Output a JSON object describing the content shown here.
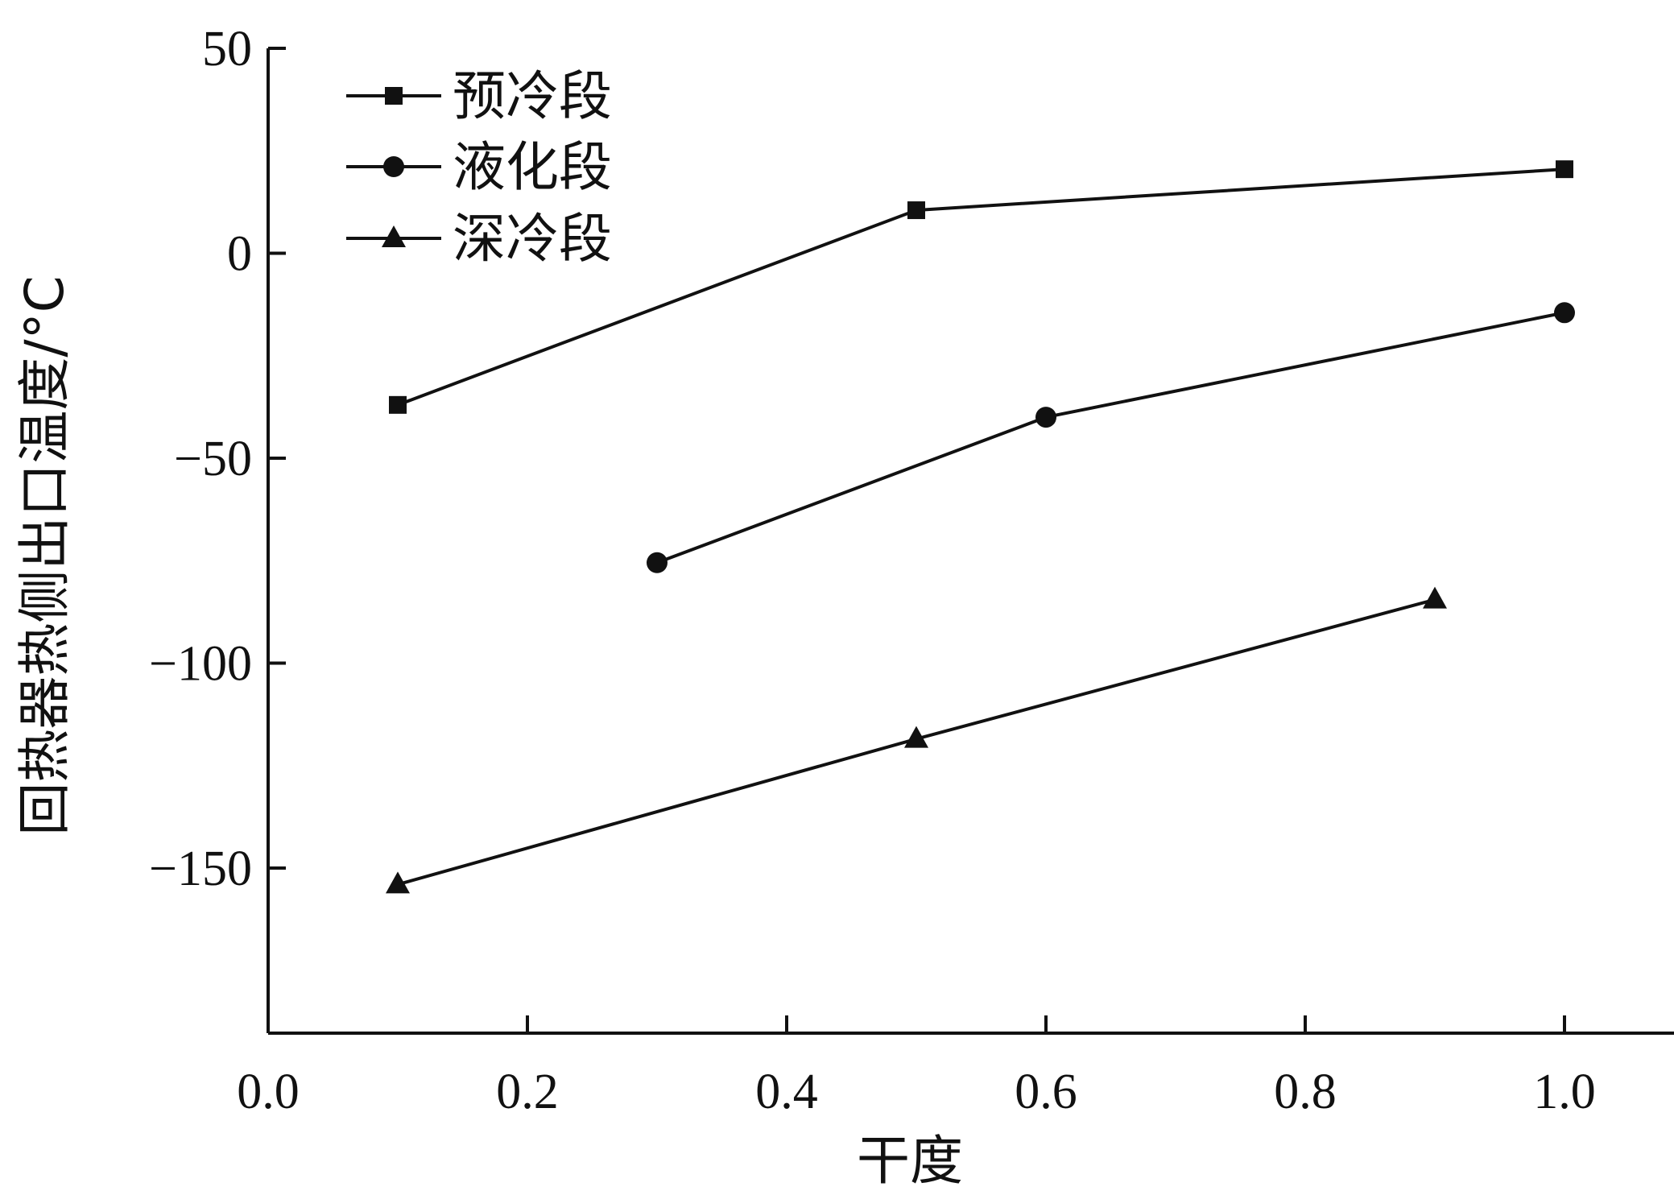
{
  "chart_data": {
    "type": "line",
    "title": "",
    "xlabel": "干度",
    "ylabel": "回热器热侧出口温度/°C",
    "xlim": [
      0.0,
      1.08
    ],
    "ylim": [
      -190,
      50
    ],
    "x_ticks": [
      0.0,
      0.2,
      0.4,
      0.6,
      0.8,
      1.0
    ],
    "x_tick_labels": [
      "0.0",
      "0.2",
      "0.4",
      "0.6",
      "0.8",
      "1.0"
    ],
    "y_ticks": [
      50,
      0,
      -50,
      -100,
      -150
    ],
    "y_tick_labels": [
      "50",
      "0",
      "−50",
      "−100",
      "−150"
    ],
    "grid": false,
    "legend_position": "top-left",
    "series": [
      {
        "name": "预冷段",
        "marker": "square",
        "color": "#111111",
        "x": [
          0.1,
          0.5,
          1.0
        ],
        "y": [
          -37,
          10.5,
          20.5
        ]
      },
      {
        "name": "液化段",
        "marker": "circle",
        "color": "#111111",
        "x": [
          0.3,
          0.6,
          1.0
        ],
        "y": [
          -75.5,
          -40,
          -14.5
        ]
      },
      {
        "name": "深冷段",
        "marker": "triangle",
        "color": "#111111",
        "x": [
          0.1,
          0.5,
          0.9
        ],
        "y": [
          -154,
          -118.5,
          -84.5
        ]
      }
    ]
  }
}
